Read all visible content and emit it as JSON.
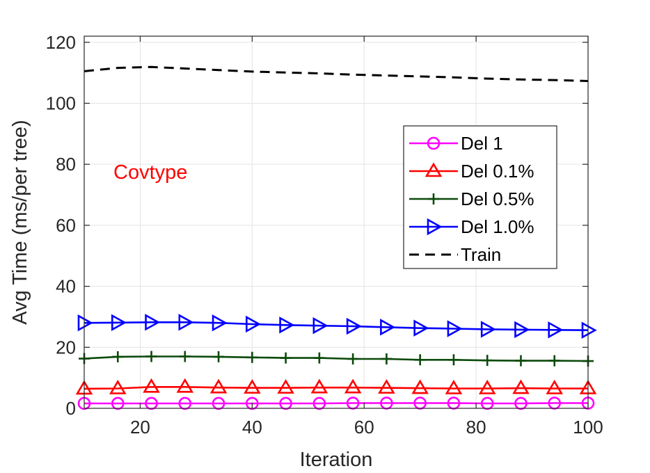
{
  "chart_data": {
    "type": "line",
    "xlabel": "Iteration",
    "ylabel": "Avg Time (ms/per tree)",
    "xlim": [
      10,
      100
    ],
    "ylim": [
      0,
      122
    ],
    "xticks": [
      20,
      40,
      60,
      80,
      100
    ],
    "yticks": [
      0,
      20,
      40,
      60,
      80,
      100,
      120
    ],
    "grid": true,
    "legend_position": "right",
    "annotation": {
      "text": "Covtype",
      "color": "#ff0000"
    },
    "x": [
      10,
      16,
      22,
      28,
      34,
      40,
      46,
      52,
      58,
      64,
      70,
      76,
      82,
      88,
      94,
      100
    ],
    "series": [
      {
        "name": "Del 1",
        "color": "#ff00ff",
        "marker": "circle",
        "dash": "solid",
        "values": [
          1.6,
          1.6,
          1.6,
          1.6,
          1.6,
          1.6,
          1.6,
          1.6,
          1.7,
          1.7,
          1.7,
          1.7,
          1.6,
          1.6,
          1.7,
          1.7
        ]
      },
      {
        "name": "Del 0.1%",
        "color": "#ff0000",
        "marker": "triangle-up",
        "dash": "solid",
        "values": [
          6.4,
          6.5,
          7.0,
          7.0,
          6.8,
          6.7,
          6.7,
          6.8,
          6.8,
          6.7,
          6.6,
          6.5,
          6.5,
          6.6,
          6.5,
          6.5
        ]
      },
      {
        "name": "Del 0.5%",
        "color": "#0b4a0b",
        "marker": "plus",
        "dash": "solid",
        "values": [
          16.3,
          16.9,
          17.0,
          17.0,
          16.9,
          16.7,
          16.5,
          16.5,
          16.2,
          16.2,
          15.9,
          15.9,
          15.7,
          15.6,
          15.6,
          15.5
        ]
      },
      {
        "name": "Del 1.0%",
        "color": "#0000ff",
        "marker": "triangle-right",
        "dash": "solid",
        "values": [
          28.0,
          28.1,
          28.2,
          28.2,
          28.0,
          27.6,
          27.3,
          27.1,
          26.9,
          26.6,
          26.3,
          26.1,
          25.9,
          25.8,
          25.7,
          25.6
        ]
      },
      {
        "name": "Train",
        "color": "#000000",
        "marker": "none",
        "dash": "dashed",
        "values": [
          110.5,
          111.6,
          111.9,
          111.4,
          110.9,
          110.4,
          110.1,
          109.8,
          109.4,
          109.1,
          108.8,
          108.5,
          108.1,
          107.8,
          107.6,
          107.3
        ]
      }
    ]
  }
}
